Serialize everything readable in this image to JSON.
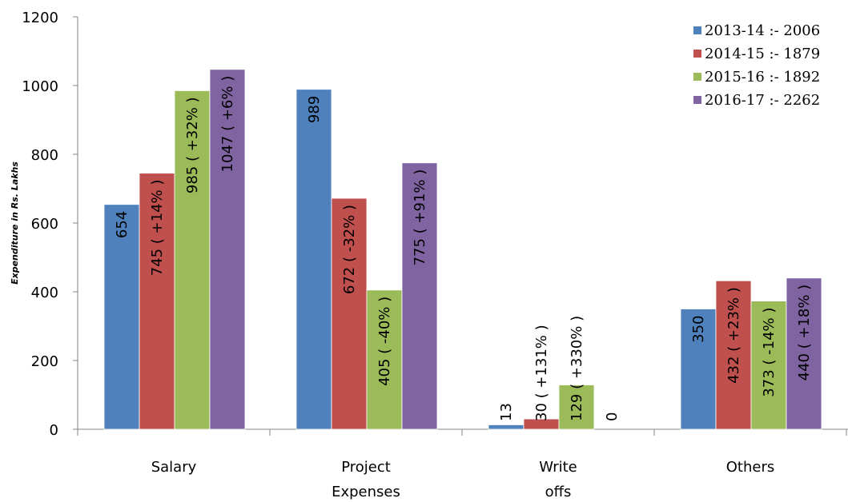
{
  "chart_data": {
    "type": "bar",
    "categories": [
      [
        "Salary"
      ],
      [
        "Project",
        "Expenses"
      ],
      [
        "Write",
        "offs"
      ],
      [
        "Others"
      ]
    ],
    "ylabel": "Expenditure in Rs. Lakhs",
    "ylim": [
      0,
      1200
    ],
    "yticks": [
      0,
      200,
      400,
      600,
      800,
      1000,
      1200
    ],
    "grid": false,
    "legend_position": "top-right",
    "series": [
      {
        "name": "2013-14 :- 2006",
        "color": "#4F81BD",
        "values": [
          654,
          989,
          13,
          350
        ],
        "labels": [
          "654",
          "989",
          "13",
          "350"
        ]
      },
      {
        "name": "2014-15 :- 1879",
        "color": "#C0504D",
        "values": [
          745,
          672,
          30,
          432
        ],
        "labels": [
          "745 ( +14% )",
          "672 ( -32% )",
          "30 ( +131% )",
          "432 ( +23% )"
        ]
      },
      {
        "name": "2015-16 :- 1892",
        "color": "#9BBB59",
        "values": [
          985,
          405,
          129,
          373
        ],
        "labels": [
          "985 ( +32% )",
          "405 ( -40% )",
          "129 ( +330% )",
          "373 ( -14% )"
        ]
      },
      {
        "name": "2016-17 :- 2262",
        "color": "#8064A2",
        "values": [
          1047,
          775,
          0,
          440
        ],
        "labels": [
          "1047 ( +6% )",
          "775 ( +91% )",
          "0",
          "440 ( +18% )"
        ]
      }
    ]
  }
}
